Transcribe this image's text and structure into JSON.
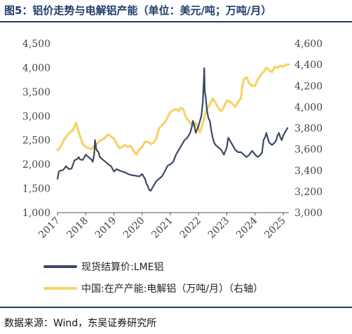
{
  "page": {
    "title": "图5：铝价走势与电解铝产能（单位：美元/吨；万吨/月）",
    "source": "数据来源：Wind，东吴证券研究所"
  },
  "chart_data": {
    "type": "line",
    "x_ticks": [
      "2017",
      "2018",
      "2019",
      "2020",
      "2021",
      "2022",
      "2023",
      "2024",
      "2025"
    ],
    "y_left": {
      "ticks": [
        "1,000",
        "1,500",
        "2,000",
        "2,500",
        "3,000",
        "3,500",
        "4,000",
        "4,500"
      ],
      "ylim": [
        1000,
        4500
      ]
    },
    "y_right": {
      "ticks": [
        "3,000",
        "3,200",
        "3,400",
        "3,600",
        "3,800",
        "4,000",
        "4,200",
        "4,400",
        "4,600"
      ],
      "ylim": [
        3000,
        4600
      ]
    },
    "grid": false,
    "legend_position": "bottom",
    "series": [
      {
        "name": "现货结算价:LME铝",
        "axis": "left",
        "color": "#3b4a63",
        "x": [
          2017.0,
          2017.05,
          2017.1,
          2017.2,
          2017.3,
          2017.4,
          2017.5,
          2017.6,
          2017.7,
          2017.75,
          2017.8,
          2017.9,
          2018.0,
          2018.1,
          2018.2,
          2018.25,
          2018.3,
          2018.33,
          2018.38,
          2018.45,
          2018.5,
          2018.6,
          2018.7,
          2018.8,
          2018.9,
          2019.0,
          2019.1,
          2019.2,
          2019.3,
          2019.4,
          2019.5,
          2019.6,
          2019.7,
          2019.8,
          2019.9,
          2020.0,
          2020.05,
          2020.1,
          2020.15,
          2020.2,
          2020.25,
          2020.3,
          2020.35,
          2020.4,
          2020.5,
          2020.6,
          2020.7,
          2020.8,
          2020.9,
          2021.0,
          2021.1,
          2021.2,
          2021.3,
          2021.4,
          2021.5,
          2021.6,
          2021.7,
          2021.75,
          2021.8,
          2021.85,
          2021.9,
          2022.0,
          2022.05,
          2022.1,
          2022.15,
          2022.18,
          2022.2,
          2022.22,
          2022.25,
          2022.3,
          2022.35,
          2022.4,
          2022.45,
          2022.5,
          2022.55,
          2022.6,
          2022.7,
          2022.8,
          2022.9,
          2023.0,
          2023.05,
          2023.1,
          2023.2,
          2023.3,
          2023.4,
          2023.5,
          2023.6,
          2023.7,
          2023.8,
          2023.9,
          2024.0,
          2024.1,
          2024.2,
          2024.25,
          2024.3,
          2024.35,
          2024.4,
          2024.45,
          2024.5,
          2024.6,
          2024.7,
          2024.75,
          2024.8,
          2024.85,
          2024.9,
          2024.95,
          2025.0,
          2025.05,
          2025.1,
          2025.15
        ],
        "values": [
          1700,
          1850,
          1870,
          1880,
          1960,
          1900,
          1910,
          2080,
          2110,
          2150,
          2100,
          2090,
          2200,
          2150,
          2100,
          2050,
          2200,
          2500,
          2300,
          2250,
          2150,
          2100,
          2050,
          2000,
          1960,
          1850,
          1900,
          1870,
          1850,
          1830,
          1800,
          1780,
          1770,
          1760,
          1750,
          1800,
          1750,
          1700,
          1600,
          1550,
          1470,
          1450,
          1500,
          1550,
          1650,
          1700,
          1750,
          1850,
          1970,
          2000,
          2050,
          2200,
          2300,
          2400,
          2500,
          2550,
          2650,
          2750,
          2900,
          2800,
          2650,
          2800,
          2900,
          3000,
          3300,
          3700,
          3990,
          3500,
          3400,
          3100,
          2950,
          2900,
          2700,
          2550,
          2450,
          2400,
          2350,
          2300,
          2200,
          2350,
          2550,
          2500,
          2400,
          2300,
          2250,
          2250,
          2200,
          2150,
          2200,
          2280,
          2200,
          2150,
          2200,
          2250,
          2500,
          2550,
          2650,
          2550,
          2450,
          2400,
          2450,
          2500,
          2600,
          2650,
          2550,
          2500,
          2600,
          2650,
          2700,
          2750
        ]
      },
      {
        "name": "中国:在产产能:电解铝（万吨/月）（右轴）",
        "axis": "right",
        "color": "#f5d36b",
        "x": [
          2017.0,
          2017.1,
          2017.25,
          2017.45,
          2017.55,
          2017.65,
          2017.8,
          2017.9,
          2018.0,
          2018.2,
          2018.3,
          2018.4,
          2018.5,
          2018.65,
          2018.8,
          2018.9,
          2019.0,
          2019.1,
          2019.2,
          2019.4,
          2019.5,
          2019.6,
          2019.7,
          2019.8,
          2019.9,
          2020.0,
          2020.1,
          2020.2,
          2020.3,
          2020.4,
          2020.5,
          2020.6,
          2020.8,
          2021.0,
          2021.1,
          2021.2,
          2021.3,
          2021.35,
          2021.45,
          2021.55,
          2021.7,
          2021.8,
          2021.9,
          2022.0,
          2022.05,
          2022.1,
          2022.2,
          2022.25,
          2022.35,
          2022.45,
          2022.5,
          2022.6,
          2022.7,
          2022.8,
          2022.9,
          2023.0,
          2023.1,
          2023.2,
          2023.3,
          2023.4,
          2023.5,
          2023.55,
          2023.6,
          2023.7,
          2023.8,
          2023.9,
          2024.0,
          2024.1,
          2024.2,
          2024.25,
          2024.3,
          2024.4,
          2024.5,
          2024.6,
          2024.7,
          2024.8,
          2024.9,
          2025.0,
          2025.1,
          2025.2
        ],
        "values": [
          3590,
          3620,
          3700,
          3760,
          3780,
          3850,
          3720,
          3650,
          3620,
          3600,
          3630,
          3650,
          3680,
          3700,
          3740,
          3720,
          3700,
          3650,
          3610,
          3640,
          3620,
          3630,
          3580,
          3550,
          3600,
          3620,
          3670,
          3670,
          3650,
          3660,
          3700,
          3800,
          3850,
          3950,
          3970,
          3980,
          3960,
          3990,
          3980,
          3900,
          3850,
          3820,
          3850,
          3800,
          3760,
          3800,
          3900,
          3950,
          4000,
          4050,
          4080,
          4040,
          3990,
          3960,
          4000,
          4060,
          4050,
          4030,
          4000,
          4050,
          4080,
          4200,
          4260,
          4280,
          4220,
          4200,
          4200,
          4260,
          4300,
          4320,
          4330,
          4370,
          4350,
          4330,
          4380,
          4370,
          4390,
          4380,
          4400,
          4400
        ]
      }
    ]
  }
}
